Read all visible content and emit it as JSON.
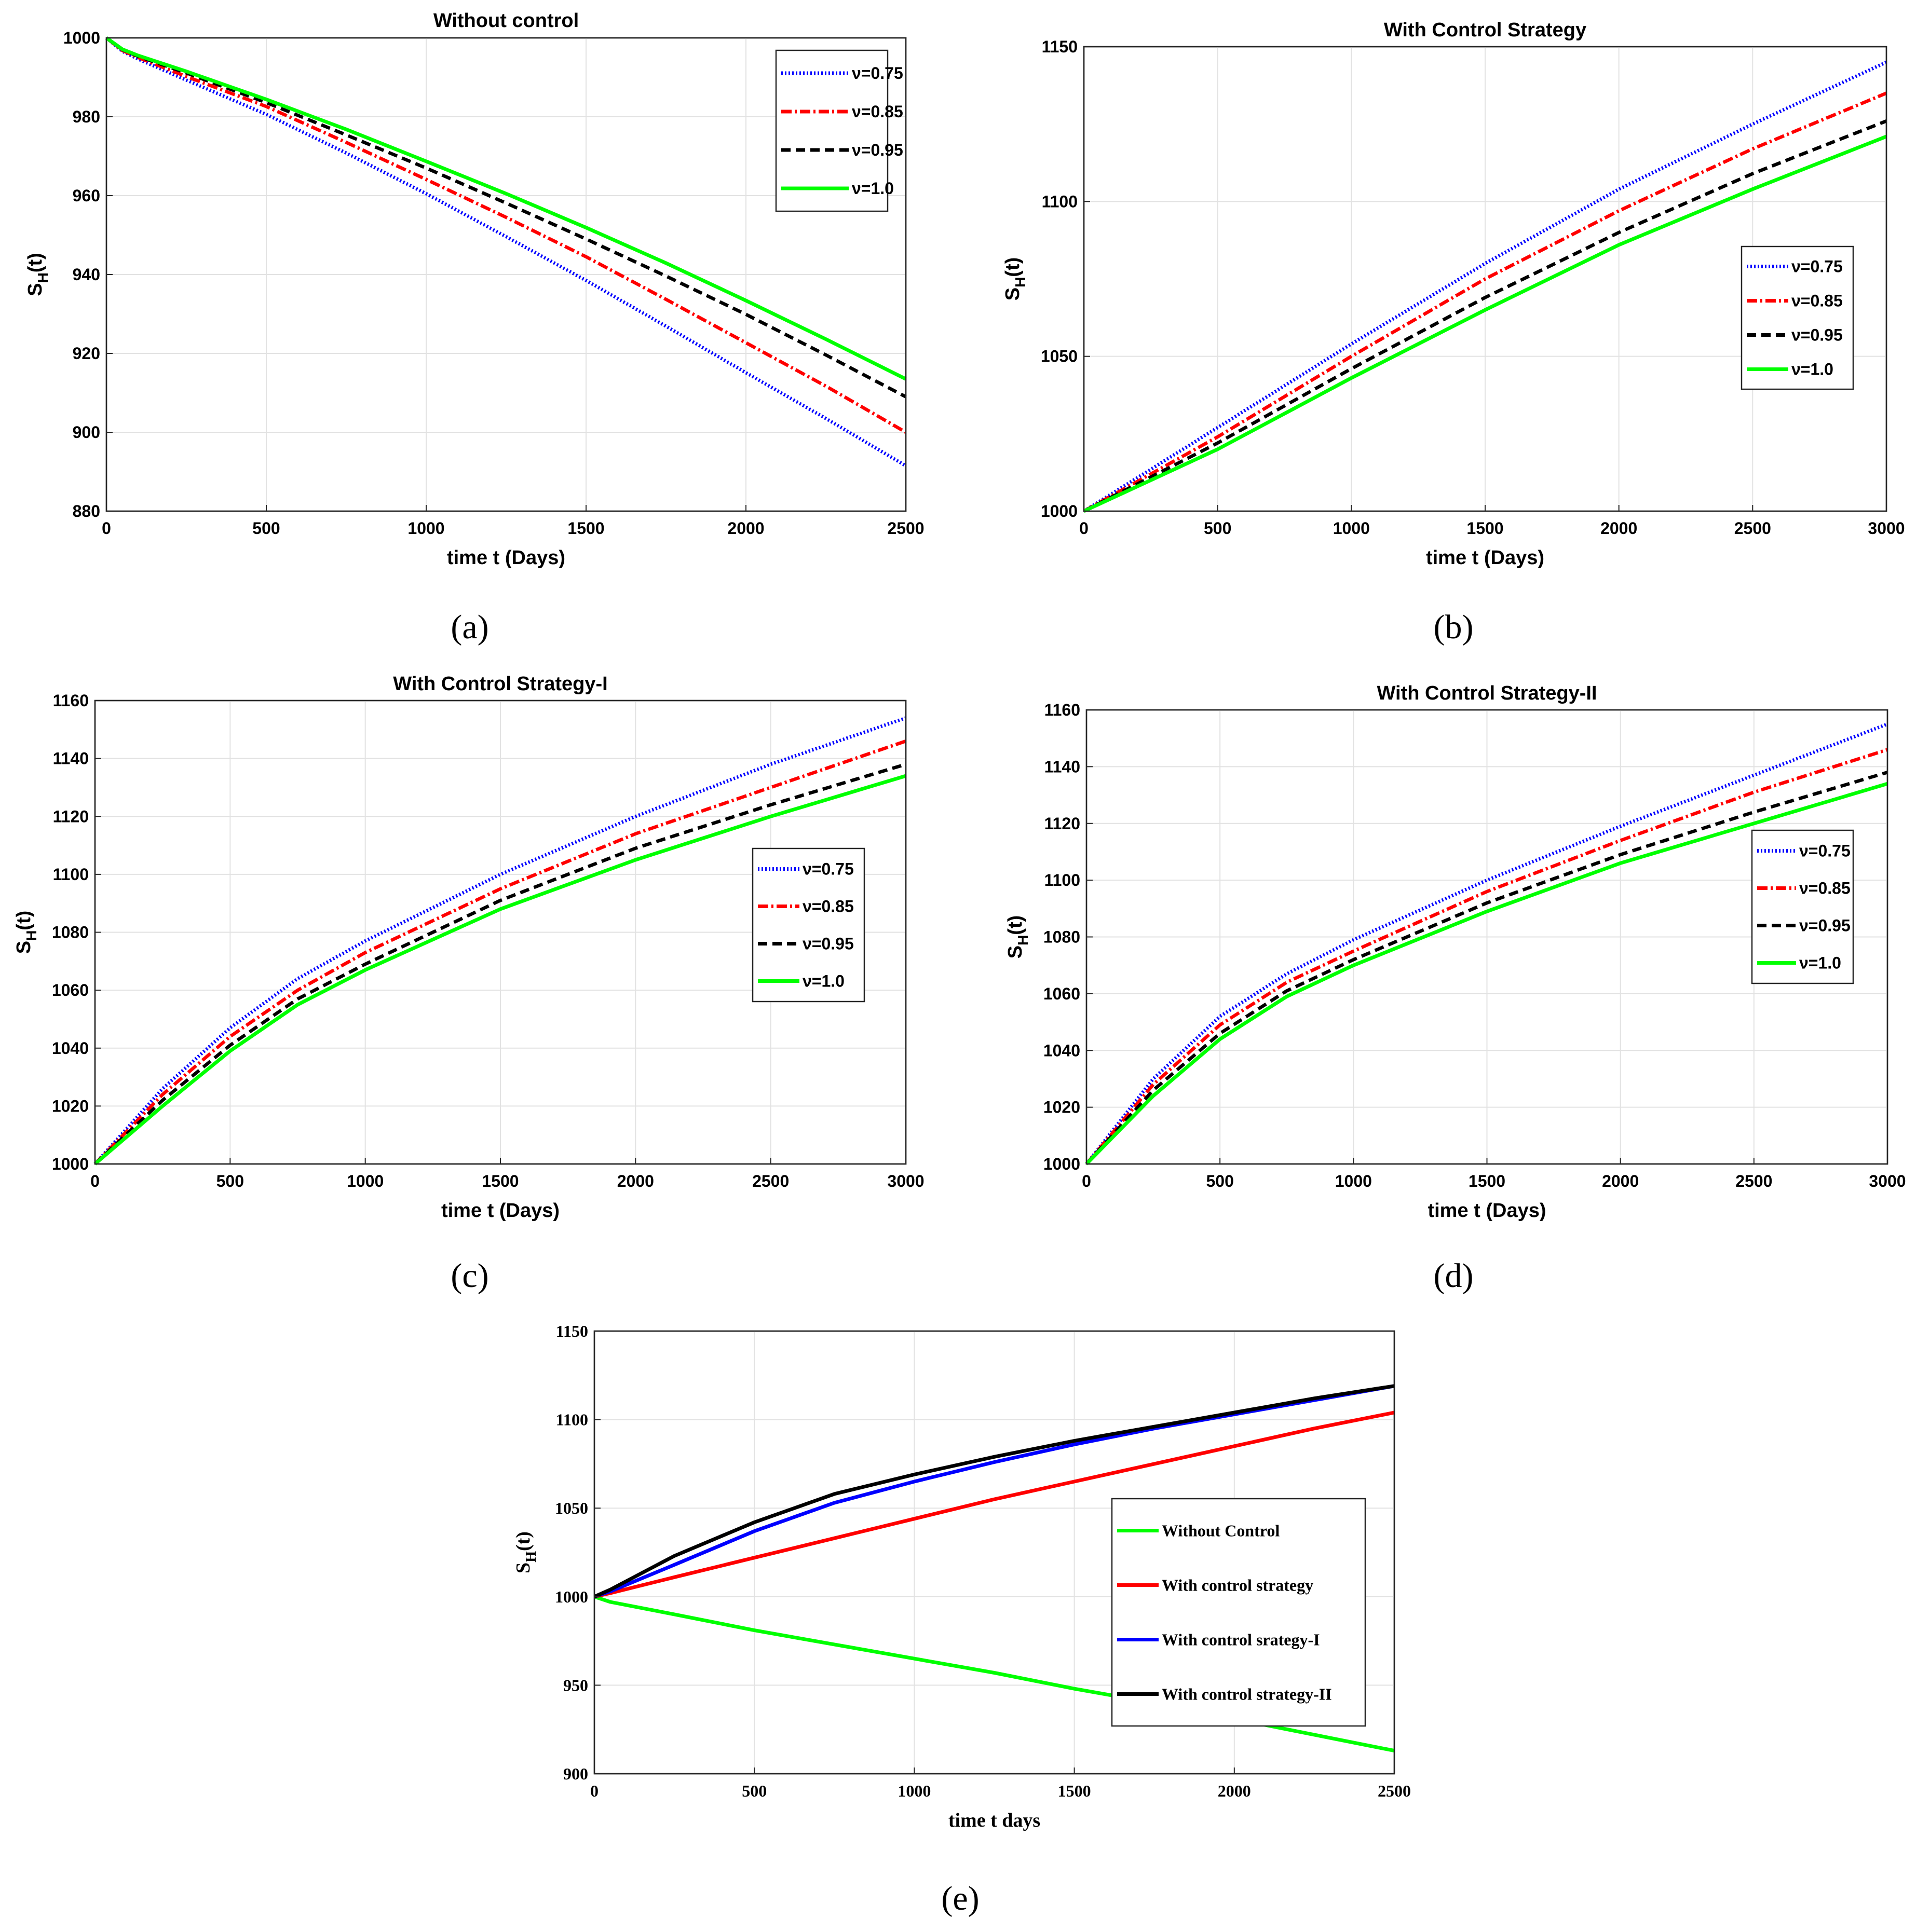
{
  "figure": {
    "panel_labels": [
      "(a)",
      "(b)",
      "(c)",
      "(d)",
      "(e)"
    ]
  },
  "chart_data": [
    {
      "id": "a",
      "type": "line",
      "title": "Without control",
      "xlabel": "time t (Days)",
      "ylabel_main": "S",
      "ylabel_sub": "H",
      "ylabel_tail": "(t)",
      "xlim": [
        0,
        2500
      ],
      "ylim": [
        880,
        1000
      ],
      "xticks": [
        0,
        500,
        1000,
        1500,
        2000,
        2500
      ],
      "yticks": [
        880,
        900,
        920,
        940,
        960,
        980,
        1000
      ],
      "x": [
        0,
        50,
        100,
        250,
        500,
        750,
        1000,
        1250,
        1500,
        1750,
        2000,
        2250,
        2500
      ],
      "series": [
        {
          "name": "ν=0.75",
          "color": "#0000ff",
          "style": "dotted",
          "values": [
            1000,
            996.6,
            994.6,
            989.3,
            980.6,
            970.8,
            960.5,
            949.6,
            938.5,
            926.9,
            915.1,
            903.5,
            891.5
          ]
        },
        {
          "name": "ν=0.85",
          "color": "#ff0000",
          "style": "dashdot",
          "values": [
            1000,
            996.8,
            995.0,
            990.2,
            982.6,
            973.5,
            964.1,
            954.5,
            944.5,
            933.7,
            922.7,
            911.7,
            900.0
          ]
        },
        {
          "name": "ν=0.95",
          "color": "#000000",
          "style": "dashed",
          "values": [
            1000,
            997.0,
            995.3,
            991.1,
            983.6,
            975.4,
            967.0,
            958.1,
            949.0,
            939.6,
            929.9,
            919.6,
            909.0
          ]
        },
        {
          "name": "ν=1.0",
          "color": "#00ff00",
          "style": "solid",
          "values": [
            1000,
            997.1,
            995.5,
            991.5,
            984.4,
            976.8,
            968.7,
            960.5,
            951.9,
            942.9,
            933.4,
            923.6,
            913.5
          ]
        }
      ]
    },
    {
      "id": "b",
      "type": "line",
      "title": "With Control Strategy",
      "xlabel": "time t (Days)",
      "ylabel_main": "S",
      "ylabel_sub": "H",
      "ylabel_tail": "(t)",
      "xlim": [
        0,
        3000
      ],
      "ylim": [
        1000,
        1150
      ],
      "xticks": [
        0,
        500,
        1000,
        1500,
        2000,
        2500,
        3000
      ],
      "yticks": [
        1000,
        1050,
        1100,
        1150
      ],
      "x": [
        0,
        500,
        1000,
        1500,
        2000,
        2500,
        3000
      ],
      "series": [
        {
          "name": "ν=0.75",
          "color": "#0000ff",
          "style": "dotted",
          "values": [
            1000,
            1027,
            1054,
            1080,
            1104,
            1125,
            1145
          ]
        },
        {
          "name": "ν=0.85",
          "color": "#ff0000",
          "style": "dashdot",
          "values": [
            1000,
            1024,
            1050,
            1075,
            1097,
            1117,
            1135
          ]
        },
        {
          "name": "ν=0.95",
          "color": "#000000",
          "style": "dashed",
          "values": [
            1000,
            1022,
            1046,
            1069,
            1090,
            1109,
            1126
          ]
        },
        {
          "name": "ν=1.0",
          "color": "#00ff00",
          "style": "solid",
          "values": [
            1000,
            1020,
            1043,
            1065,
            1086,
            1104,
            1121
          ]
        }
      ]
    },
    {
      "id": "c",
      "type": "line",
      "title": "With Control Strategy-I",
      "xlabel": "time t (Days)",
      "ylabel_main": "S",
      "ylabel_sub": "H",
      "ylabel_tail": "(t)",
      "xlim": [
        0,
        3000
      ],
      "ylim": [
        1000,
        1160
      ],
      "xticks": [
        0,
        500,
        1000,
        1500,
        2000,
        2500,
        3000
      ],
      "yticks": [
        1000,
        1020,
        1040,
        1060,
        1080,
        1100,
        1120,
        1140,
        1160
      ],
      "x": [
        0,
        250,
        500,
        750,
        1000,
        1500,
        2000,
        2500,
        3000
      ],
      "series": [
        {
          "name": "ν=0.75",
          "color": "#0000ff",
          "style": "dotted",
          "values": [
            1000,
            1026,
            1047,
            1064,
            1077,
            1100,
            1120,
            1138,
            1154
          ]
        },
        {
          "name": "ν=0.85",
          "color": "#ff0000",
          "style": "dashdot",
          "values": [
            1000,
            1024,
            1044,
            1060,
            1073,
            1095,
            1114,
            1130,
            1146
          ]
        },
        {
          "name": "ν=0.95",
          "color": "#000000",
          "style": "dashed",
          "values": [
            1000,
            1022,
            1041,
            1057,
            1069,
            1091,
            1109,
            1124,
            1138
          ]
        },
        {
          "name": "ν=1.0",
          "color": "#00ff00",
          "style": "solid",
          "values": [
            1000,
            1020,
            1039,
            1055,
            1067,
            1088,
            1105,
            1120,
            1134
          ]
        }
      ]
    },
    {
      "id": "d",
      "type": "line",
      "title": "With Control Strategy-II",
      "xlabel": "time t (Days)",
      "ylabel_main": "S",
      "ylabel_sub": "H",
      "ylabel_tail": "(t)",
      "xlim": [
        0,
        3000
      ],
      "ylim": [
        1000,
        1160
      ],
      "xticks": [
        0,
        500,
        1000,
        1500,
        2000,
        2500,
        3000
      ],
      "yticks": [
        1000,
        1020,
        1040,
        1060,
        1080,
        1100,
        1120,
        1140,
        1160
      ],
      "x": [
        0,
        250,
        500,
        750,
        1000,
        1500,
        2000,
        2500,
        3000
      ],
      "series": [
        {
          "name": "ν=0.75",
          "color": "#0000ff",
          "style": "dotted",
          "values": [
            1000,
            1030,
            1052,
            1067,
            1079,
            1100,
            1119,
            1137,
            1155
          ]
        },
        {
          "name": "ν=0.85",
          "color": "#ff0000",
          "style": "dashdot",
          "values": [
            1000,
            1028,
            1049,
            1064,
            1075,
            1096,
            1114,
            1131,
            1146
          ]
        },
        {
          "name": "ν=0.95",
          "color": "#000000",
          "style": "dashed",
          "values": [
            1000,
            1026,
            1046,
            1061,
            1072,
            1092,
            1109,
            1124,
            1138
          ]
        },
        {
          "name": "ν=1.0",
          "color": "#00ff00",
          "style": "solid",
          "values": [
            1000,
            1024,
            1044,
            1059,
            1070,
            1089,
            1106,
            1120,
            1134
          ]
        }
      ]
    },
    {
      "id": "e",
      "type": "line",
      "title": "",
      "xlabel": "time t days",
      "ylabel_main": "S",
      "ylabel_sub": "H",
      "ylabel_tail": "(t)",
      "xlim": [
        0,
        2500
      ],
      "ylim": [
        900,
        1150
      ],
      "xticks": [
        0,
        500,
        1000,
        1500,
        2000,
        2500
      ],
      "yticks": [
        900,
        950,
        1000,
        1050,
        1100,
        1150
      ],
      "x": [
        0,
        50,
        250,
        500,
        750,
        1000,
        1250,
        1500,
        1750,
        2000,
        2250,
        2500
      ],
      "series": [
        {
          "name": "Without Control",
          "color": "#00ff00",
          "style": "solid",
          "values": [
            1000,
            997,
            990,
            981,
            973,
            965,
            957,
            948,
            940,
            931,
            922,
            913
          ]
        },
        {
          "name": "With control strategy",
          "color": "#ff0000",
          "style": "solid",
          "values": [
            1000,
            1002,
            1011,
            1022,
            1033,
            1044,
            1055,
            1065,
            1075,
            1085,
            1095,
            1104
          ]
        },
        {
          "name": "With control srategy-I",
          "color": "#0000ff",
          "style": "solid",
          "values": [
            1000,
            1003,
            1018,
            1037,
            1053,
            1065,
            1076,
            1086,
            1095,
            1103,
            1111,
            1119
          ]
        },
        {
          "name": "With control strategy-II",
          "color": "#000000",
          "style": "solid",
          "values": [
            1000,
            1004,
            1023,
            1042,
            1058,
            1069,
            1079,
            1088,
            1096,
            1104,
            1112,
            1119
          ]
        }
      ]
    }
  ]
}
